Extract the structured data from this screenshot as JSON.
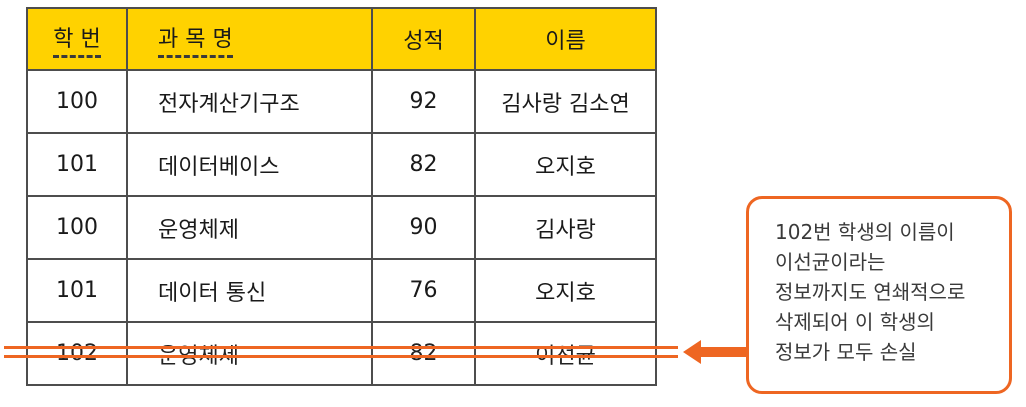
{
  "table": {
    "headers": [
      "학 번",
      "과 목 명",
      "성적",
      "이름"
    ],
    "rows": [
      [
        "100",
        "전자계산기구조",
        "92",
        "김사랑 김소연"
      ],
      [
        "101",
        "데이터베이스",
        "82",
        "오지호"
      ],
      [
        "100",
        "운영체제",
        "90",
        "김사랑"
      ],
      [
        "101",
        "데이터 통신",
        "76",
        "오지호"
      ],
      [
        "102",
        "운영체제",
        "82",
        "이선균"
      ]
    ]
  },
  "callout": {
    "lines": [
      "102번 학생의 이름이",
      "이선균이라는",
      "정보까지도 연쇄적으로",
      "삭제되어 이 학생의",
      "정보가 모두 손실"
    ]
  },
  "colors": {
    "header_bg": "#ffd200",
    "accent": "#ee6622",
    "border": "#4d4d4d"
  }
}
